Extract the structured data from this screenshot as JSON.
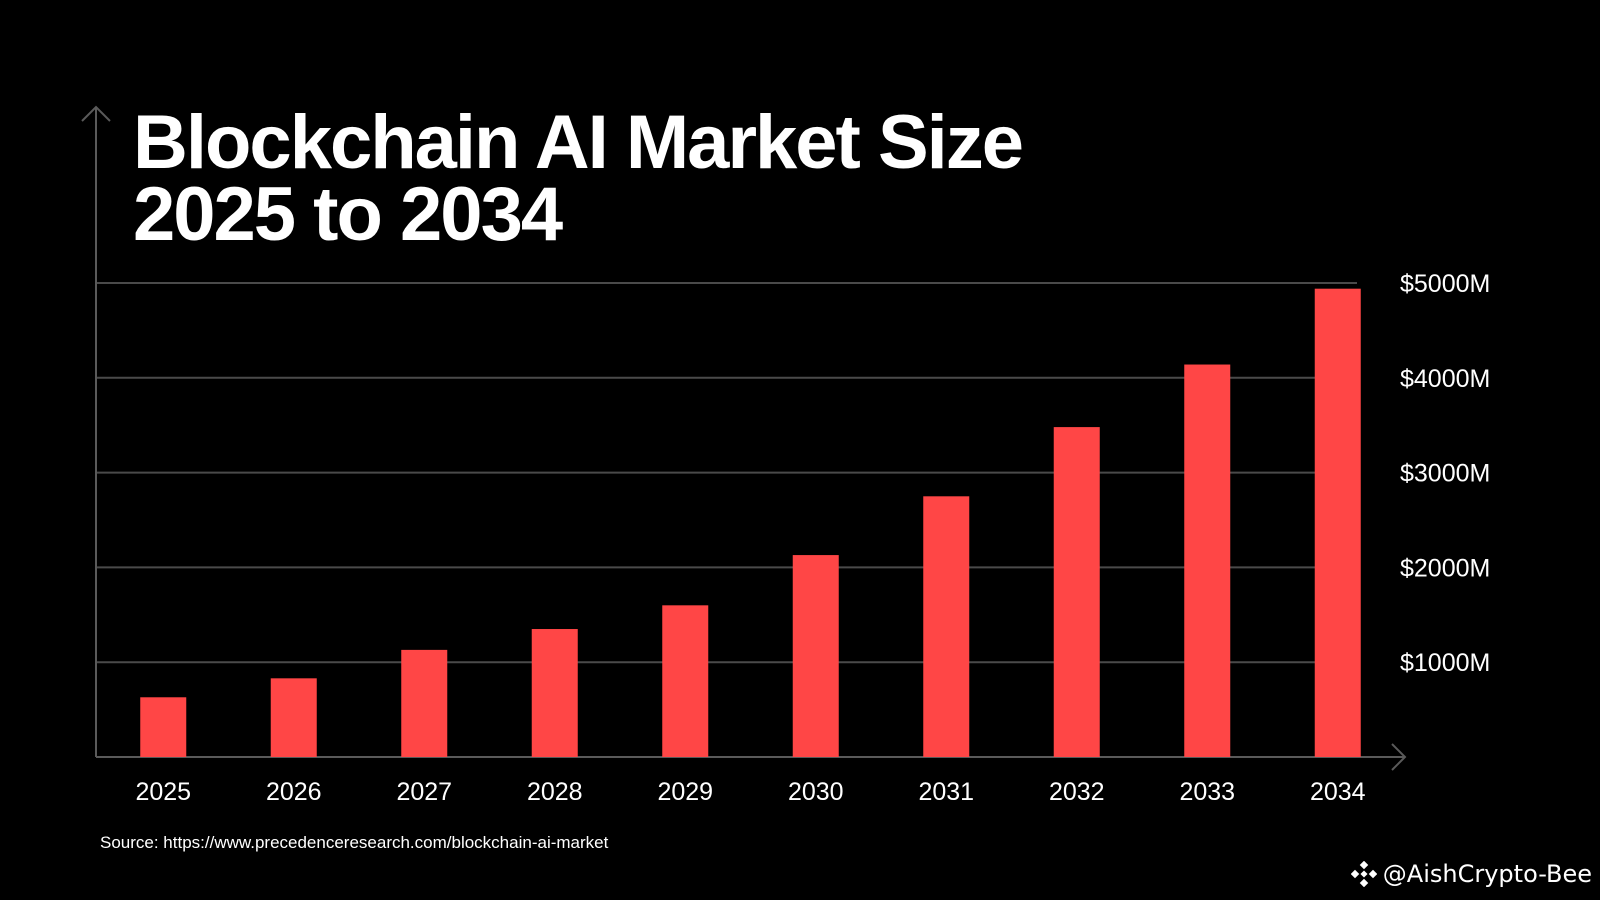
{
  "chart_data": {
    "type": "bar",
    "title": [
      "Blockchain AI Market Size",
      "2025 to 2034"
    ],
    "categories": [
      "2025",
      "2026",
      "2027",
      "2028",
      "2029",
      "2030",
      "2031",
      "2032",
      "2033",
      "2034"
    ],
    "values": [
      630,
      830,
      1130,
      1350,
      1600,
      2130,
      2750,
      3480,
      4140,
      4940
    ],
    "units": "USD millions",
    "ylim": [
      0,
      5000
    ],
    "y_ticks": [
      1000,
      2000,
      3000,
      4000,
      5000
    ],
    "y_tick_labels": [
      "$1000M",
      "$2000M",
      "$3000M",
      "$4000M",
      "$5000M"
    ],
    "y_axis_side": "right",
    "grid": true,
    "xlabel": "",
    "ylabel": ""
  },
  "source": "Source: https://www.precedenceresearch.com/blockchain-ai-market",
  "watermark": "@AishCrypto-Bee",
  "colors": {
    "background": "#000000",
    "bar": "#ff4646",
    "grid": "#4a4a4a",
    "axis": "#5a5a5a",
    "text": "#ffffff"
  }
}
